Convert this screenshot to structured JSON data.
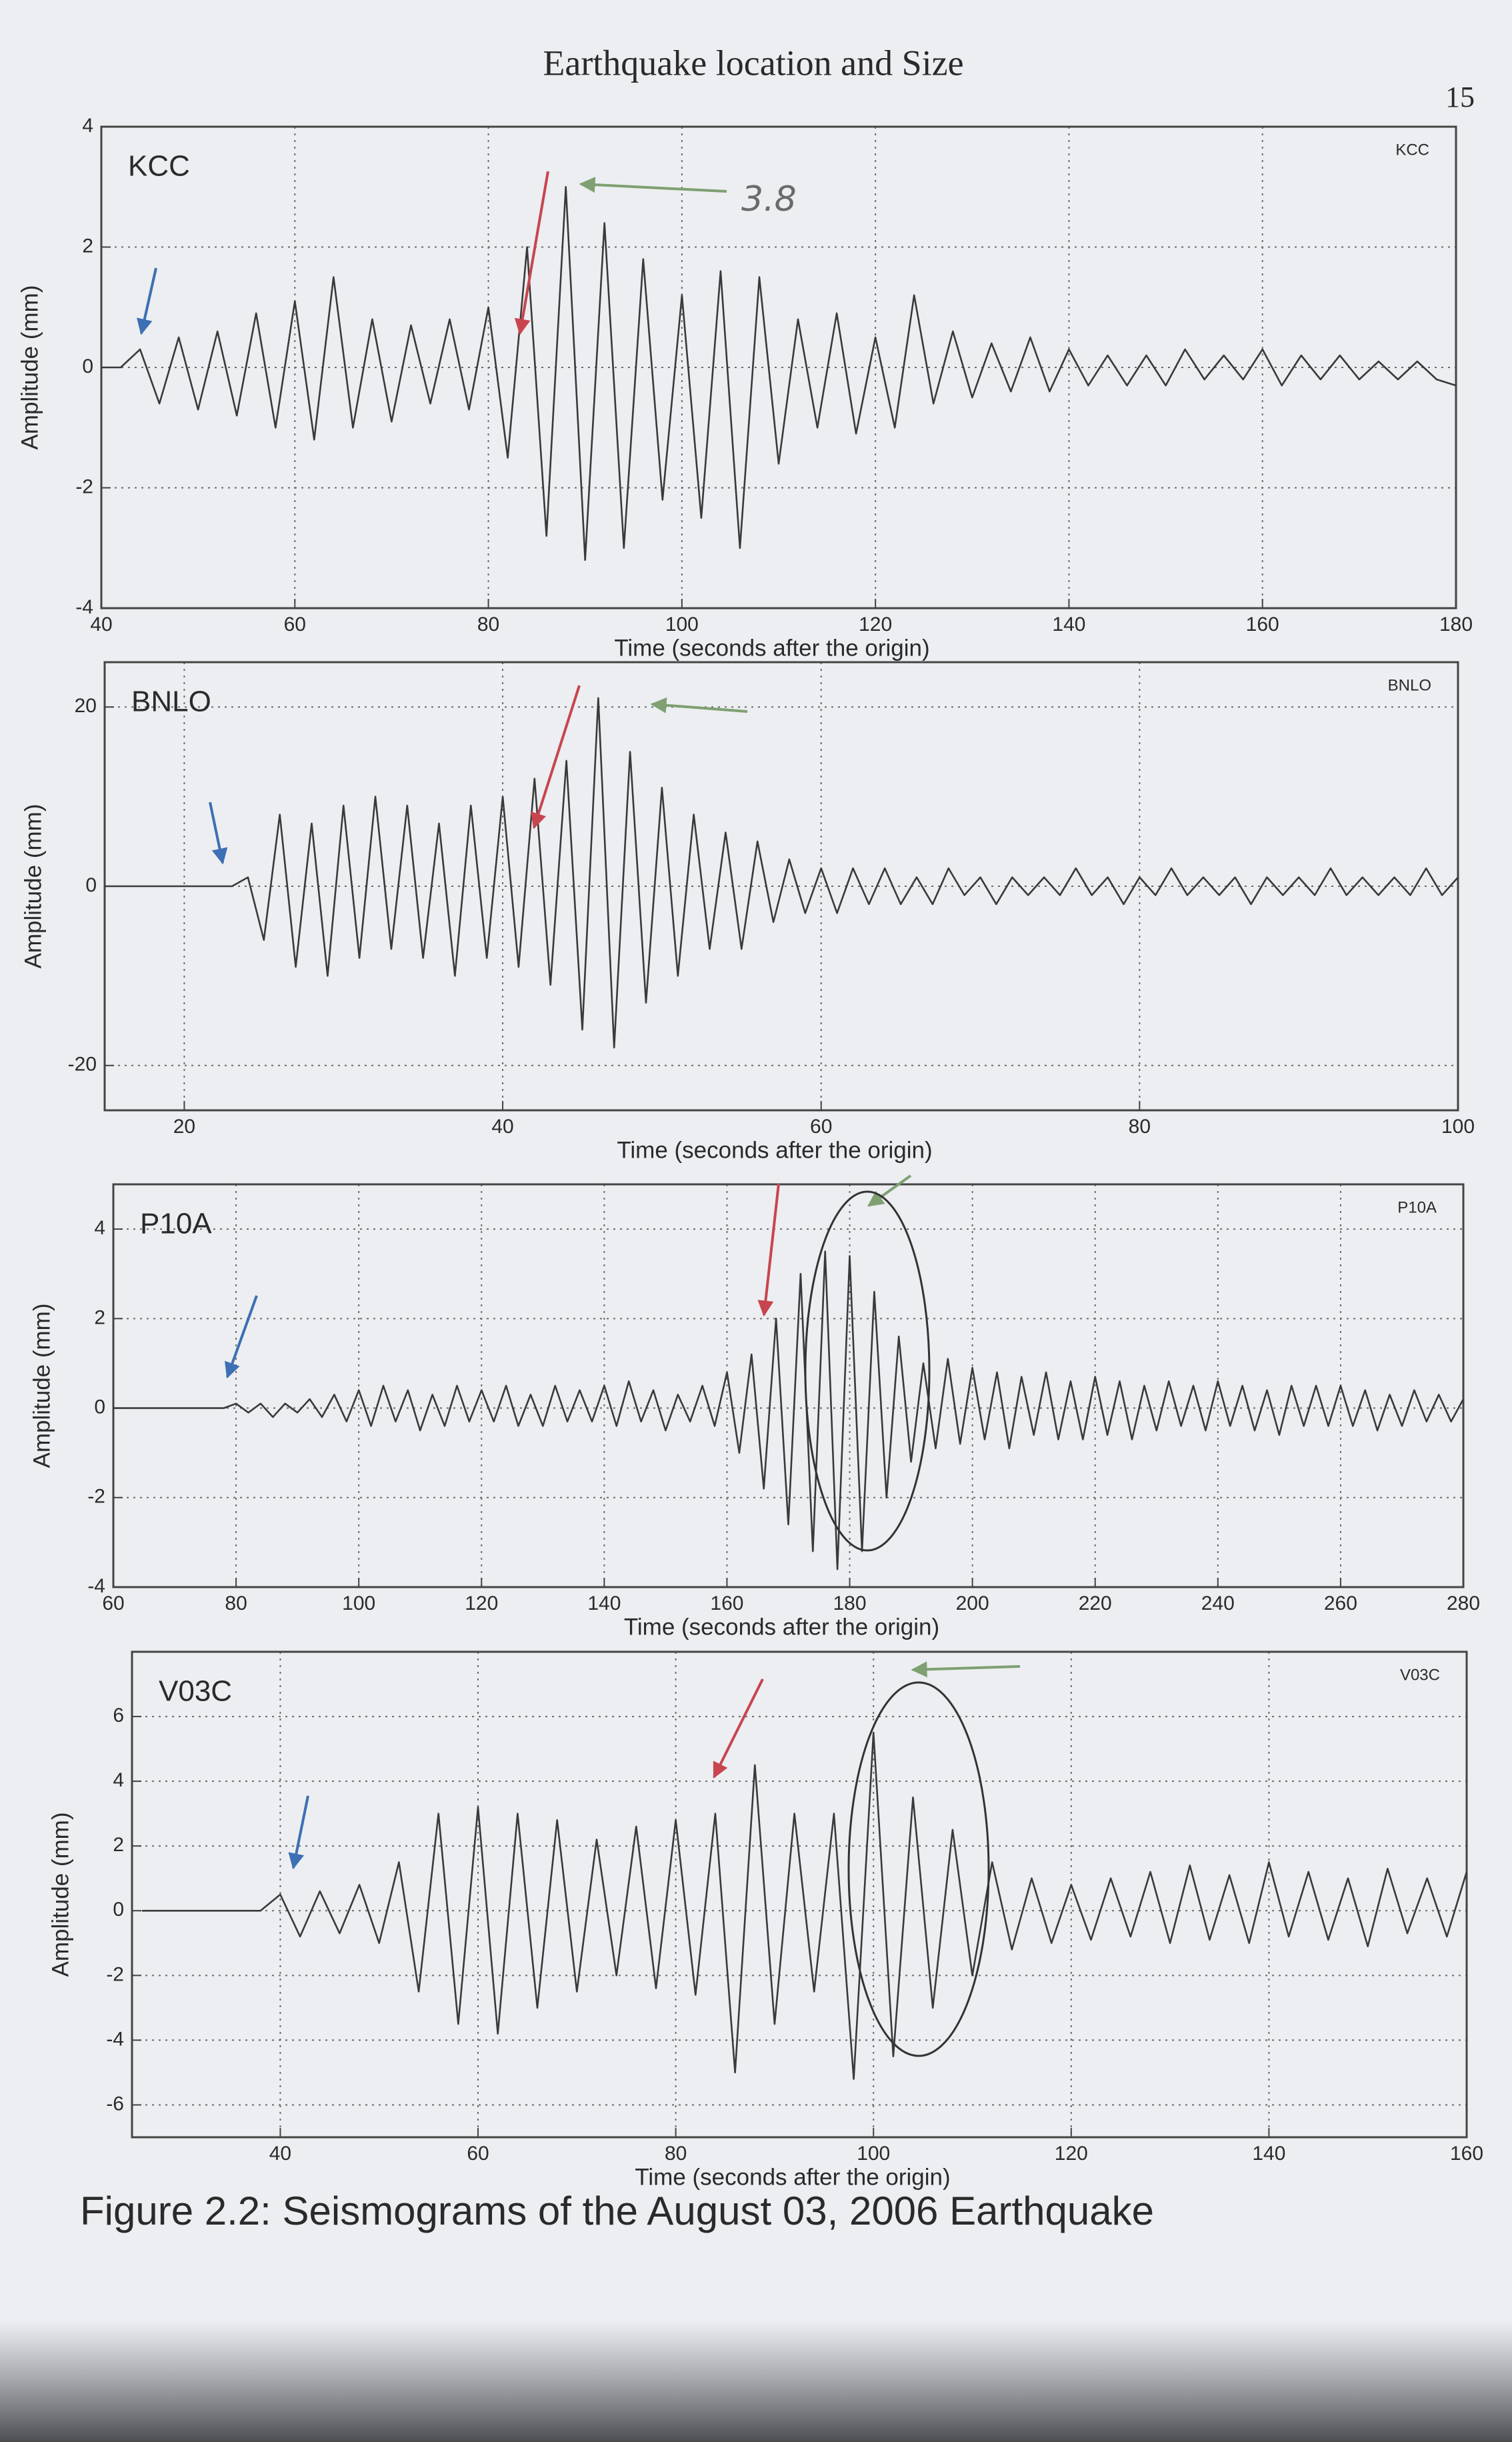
{
  "header": {
    "title": "Earthquake location and Size",
    "page_number": "15"
  },
  "caption": "Figure 2.2: Seismograms of the August 03, 2006 Earthquake",
  "chart_data": [
    {
      "type": "line",
      "title": "KCC",
      "annotation": "3.8",
      "xlabel": "Time (seconds after the origin)",
      "ylabel": "Amplitude (mm)",
      "color": "#3a3a3a",
      "grid": true,
      "xlim": [
        40,
        180
      ],
      "xticks": [
        40,
        60,
        80,
        100,
        120,
        140,
        160,
        180
      ],
      "ylim": [
        -4,
        4
      ],
      "yticks": [
        -4,
        -2,
        0,
        2,
        4
      ],
      "x": [
        40,
        42,
        44,
        46,
        48,
        50,
        52,
        54,
        56,
        58,
        60,
        62,
        64,
        66,
        68,
        70,
        72,
        74,
        76,
        78,
        80,
        82,
        84,
        86,
        88,
        90,
        92,
        94,
        96,
        98,
        100,
        102,
        104,
        106,
        108,
        110,
        112,
        114,
        116,
        118,
        120,
        122,
        124,
        126,
        128,
        130,
        132,
        134,
        136,
        138,
        140,
        142,
        144,
        146,
        148,
        150,
        152,
        154,
        156,
        158,
        160,
        162,
        164,
        166,
        168,
        170,
        172,
        174,
        176,
        178,
        180
      ],
      "values": [
        0,
        0,
        0.3,
        -0.6,
        0.5,
        -0.7,
        0.6,
        -0.8,
        0.9,
        -1.0,
        1.1,
        -1.2,
        1.5,
        -1.0,
        0.8,
        -0.9,
        0.7,
        -0.6,
        0.8,
        -0.7,
        1.0,
        -1.5,
        2.0,
        -2.8,
        3.0,
        -3.2,
        2.4,
        -3.0,
        1.8,
        -2.2,
        1.2,
        -2.5,
        1.6,
        -3.0,
        1.5,
        -1.6,
        0.8,
        -1.0,
        0.9,
        -1.1,
        0.5,
        -1.0,
        1.2,
        -0.6,
        0.6,
        -0.5,
        0.4,
        -0.4,
        0.5,
        -0.4,
        0.3,
        -0.3,
        0.2,
        -0.3,
        0.2,
        -0.3,
        0.3,
        -0.2,
        0.2,
        -0.2,
        0.3,
        -0.3,
        0.2,
        -0.2,
        0.2,
        -0.2,
        0.1,
        -0.2,
        0.1,
        -0.2,
        -0.3
      ]
    },
    {
      "type": "line",
      "title": "BNLO",
      "xlabel": "Time (seconds after the origin)",
      "ylabel": "Amplitude (mm)",
      "color": "#3a3a3a",
      "grid": true,
      "xlim": [
        15,
        100
      ],
      "xticks": [
        20,
        40,
        60,
        80,
        100
      ],
      "ylim": [
        -25,
        25
      ],
      "yticks": [
        -20,
        0,
        20
      ],
      "x": [
        15,
        16,
        17,
        18,
        19,
        20,
        21,
        22,
        23,
        24,
        25,
        26,
        27,
        28,
        29,
        30,
        31,
        32,
        33,
        34,
        35,
        36,
        37,
        38,
        39,
        40,
        41,
        42,
        43,
        44,
        45,
        46,
        47,
        48,
        49,
        50,
        51,
        52,
        53,
        54,
        55,
        56,
        57,
        58,
        59,
        60,
        61,
        62,
        63,
        64,
        65,
        66,
        67,
        68,
        69,
        70,
        71,
        72,
        73,
        74,
        75,
        76,
        77,
        78,
        79,
        80,
        81,
        82,
        83,
        84,
        85,
        86,
        87,
        88,
        89,
        90,
        91,
        92,
        93,
        94,
        95,
        96,
        97,
        98,
        99,
        100
      ],
      "values": [
        0,
        0,
        0,
        0,
        0,
        0,
        0,
        0,
        0,
        1,
        -6,
        8,
        -9,
        7,
        -10,
        9,
        -8,
        10,
        -7,
        9,
        -8,
        7,
        -10,
        9,
        -8,
        10,
        -9,
        12,
        -11,
        14,
        -16,
        21,
        -18,
        15,
        -13,
        11,
        -10,
        8,
        -7,
        6,
        -7,
        5,
        -4,
        3,
        -3,
        2,
        -3,
        2,
        -2,
        2,
        -2,
        1,
        -2,
        2,
        -1,
        1,
        -2,
        1,
        -1,
        1,
        -1,
        2,
        -1,
        1,
        -2,
        1,
        -1,
        2,
        -1,
        1,
        -1,
        1,
        -2,
        1,
        -1,
        1,
        -1,
        2,
        -1,
        1,
        -1,
        1,
        -1,
        2,
        -1,
        1
      ]
    },
    {
      "type": "line",
      "title": "P10A",
      "xlabel": "Time (seconds after the origin)",
      "ylabel": "Amplitude (mm)",
      "color": "#3a3a3a",
      "grid": true,
      "xlim": [
        60,
        280
      ],
      "xticks": [
        60,
        80,
        100,
        120,
        140,
        160,
        180,
        200,
        220,
        240,
        260,
        280
      ],
      "ylim": [
        -4,
        5
      ],
      "yticks": [
        -4,
        -2,
        0,
        2,
        4
      ],
      "x": [
        60,
        62,
        64,
        66,
        68,
        70,
        72,
        74,
        76,
        78,
        80,
        82,
        84,
        86,
        88,
        90,
        92,
        94,
        96,
        98,
        100,
        102,
        104,
        106,
        108,
        110,
        112,
        114,
        116,
        118,
        120,
        122,
        124,
        126,
        128,
        130,
        132,
        134,
        136,
        138,
        140,
        142,
        144,
        146,
        148,
        150,
        152,
        154,
        156,
        158,
        160,
        162,
        164,
        166,
        168,
        170,
        172,
        174,
        176,
        178,
        180,
        182,
        184,
        186,
        188,
        190,
        192,
        194,
        196,
        198,
        200,
        202,
        204,
        206,
        208,
        210,
        212,
        214,
        216,
        218,
        220,
        222,
        224,
        226,
        228,
        230,
        232,
        234,
        236,
        238,
        240,
        242,
        244,
        246,
        248,
        250,
        252,
        254,
        256,
        258,
        260,
        262,
        264,
        266,
        268,
        270,
        272,
        274,
        276,
        278,
        280
      ],
      "values": [
        0,
        0,
        0,
        0,
        0,
        0,
        0,
        0,
        0,
        0,
        0.1,
        -0.1,
        0.1,
        -0.2,
        0.1,
        -0.1,
        0.2,
        -0.2,
        0.3,
        -0.3,
        0.4,
        -0.4,
        0.5,
        -0.3,
        0.4,
        -0.5,
        0.3,
        -0.4,
        0.5,
        -0.3,
        0.4,
        -0.3,
        0.5,
        -0.4,
        0.3,
        -0.4,
        0.5,
        -0.3,
        0.4,
        -0.3,
        0.5,
        -0.4,
        0.6,
        -0.3,
        0.4,
        -0.5,
        0.3,
        -0.3,
        0.5,
        -0.4,
        0.8,
        -1.0,
        1.2,
        -1.8,
        2.0,
        -2.6,
        3.0,
        -3.2,
        3.5,
        -3.6,
        3.4,
        -3.2,
        2.6,
        -2.0,
        1.6,
        -1.2,
        1.0,
        -0.9,
        1.1,
        -0.8,
        0.9,
        -0.7,
        0.8,
        -0.9,
        0.7,
        -0.6,
        0.8,
        -0.7,
        0.6,
        -0.7,
        0.7,
        -0.6,
        0.6,
        -0.7,
        0.5,
        -0.5,
        0.6,
        -0.4,
        0.5,
        -0.5,
        0.6,
        -0.4,
        0.5,
        -0.5,
        0.4,
        -0.6,
        0.5,
        -0.4,
        0.5,
        -0.4,
        0.5,
        -0.4,
        0.4,
        -0.5,
        0.3,
        -0.4,
        0.4,
        -0.3,
        0.3,
        -0.3,
        0.2
      ]
    },
    {
      "type": "line",
      "title": "V03C",
      "xlabel": "Time (seconds after the origin)",
      "ylabel": "Amplitude (mm)",
      "color": "#3a3a3a",
      "grid": true,
      "xlim": [
        25,
        160
      ],
      "xticks": [
        40,
        60,
        80,
        100,
        120,
        140,
        160
      ],
      "ylim": [
        -7,
        8
      ],
      "yticks": [
        -6,
        -4,
        -2,
        0,
        2,
        4,
        6
      ],
      "x": [
        26,
        28,
        30,
        32,
        34,
        36,
        38,
        40,
        42,
        44,
        46,
        48,
        50,
        52,
        54,
        56,
        58,
        60,
        62,
        64,
        66,
        68,
        70,
        72,
        74,
        76,
        78,
        80,
        82,
        84,
        86,
        88,
        90,
        92,
        94,
        96,
        98,
        100,
        102,
        104,
        106,
        108,
        110,
        112,
        114,
        116,
        118,
        120,
        122,
        124,
        126,
        128,
        130,
        132,
        134,
        136,
        138,
        140,
        142,
        144,
        146,
        148,
        150,
        152,
        154,
        156,
        158,
        160
      ],
      "values": [
        0,
        0,
        0,
        0,
        0,
        0,
        0,
        0.5,
        -0.8,
        0.6,
        -0.7,
        0.8,
        -1.0,
        1.5,
        -2.5,
        3.0,
        -3.5,
        3.2,
        -3.8,
        3.0,
        -3.0,
        2.8,
        -2.5,
        2.2,
        -2.0,
        2.6,
        -2.4,
        2.8,
        -2.6,
        3.0,
        -5.0,
        4.5,
        -3.5,
        3.0,
        -2.5,
        3.0,
        -5.2,
        5.5,
        -4.5,
        3.5,
        -3.0,
        2.5,
        -2.0,
        1.5,
        -1.2,
        1.0,
        -1.0,
        0.8,
        -0.9,
        1.0,
        -0.8,
        1.2,
        -1.0,
        1.4,
        -0.9,
        1.1,
        -1.0,
        1.5,
        -0.8,
        1.2,
        -0.9,
        1.0,
        -1.1,
        1.3,
        -0.7,
        1.0,
        -0.8,
        1.2
      ]
    }
  ]
}
